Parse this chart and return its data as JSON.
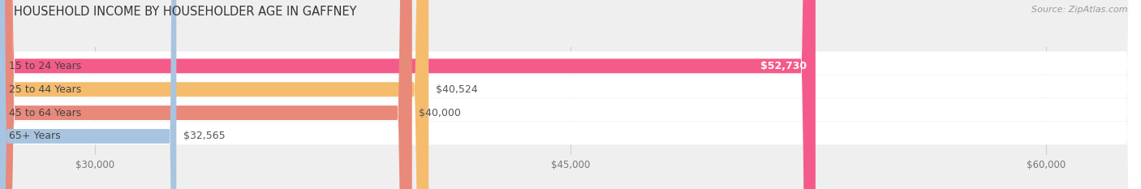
{
  "title": "HOUSEHOLD INCOME BY HOUSEHOLDER AGE IN GAFFNEY",
  "source": "Source: ZipAtlas.com",
  "categories": [
    "15 to 24 Years",
    "25 to 44 Years",
    "45 to 64 Years",
    "65+ Years"
  ],
  "values": [
    52730,
    40524,
    40000,
    32565
  ],
  "bar_colors": [
    "#f45b8a",
    "#f5bc6e",
    "#e8897a",
    "#a8c4e0"
  ],
  "bar_labels": [
    "$52,730",
    "$40,524",
    "$40,000",
    "$32,565"
  ],
  "label_white": [
    true,
    false,
    false,
    false
  ],
  "xlim_min": 27000,
  "xlim_max": 63000,
  "xticks": [
    30000,
    45000,
    60000
  ],
  "xtick_labels": [
    "$30,000",
    "$45,000",
    "$60,000"
  ],
  "background_color": "#efefef",
  "row_bg_color": "#ffffff",
  "grid_color": "#d0d0d0",
  "title_fontsize": 10.5,
  "source_fontsize": 8,
  "label_fontsize": 9,
  "tick_fontsize": 8.5,
  "category_fontsize": 9
}
